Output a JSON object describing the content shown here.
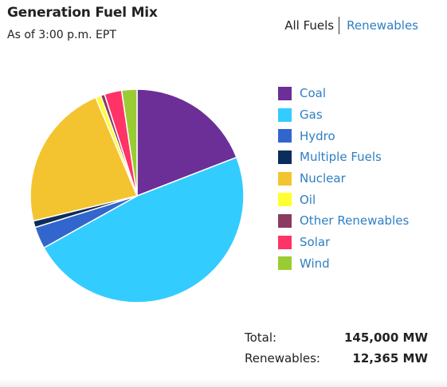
{
  "header": {
    "title": "Generation Fuel Mix",
    "subtitle": "As of 3:00 p.m. EPT"
  },
  "toggle": {
    "all_label": "All Fuels",
    "renewables_label": "Renewables"
  },
  "chart_data": {
    "type": "pie",
    "title": "Generation Fuel Mix",
    "slices": [
      {
        "name": "Coal",
        "value": 19.0,
        "color": "#6b2f97"
      },
      {
        "name": "Gas",
        "value": 47.5,
        "color": "#33ccff"
      },
      {
        "name": "Hydro",
        "value": 3.3,
        "color": "#3366cc"
      },
      {
        "name": "Multiple Fuels",
        "value": 1.0,
        "color": "#0b2d5b"
      },
      {
        "name": "Nuclear",
        "value": 22.3,
        "color": "#f4c430"
      },
      {
        "name": "Oil",
        "value": 0.8,
        "color": "#ffff33"
      },
      {
        "name": "Other Renewables",
        "value": 0.6,
        "color": "#8b3a62"
      },
      {
        "name": "Solar",
        "value": 2.6,
        "color": "#ff3366"
      },
      {
        "name": "Wind",
        "value": 2.3,
        "color": "#99cc33"
      }
    ],
    "legend_placement": "right"
  },
  "totals": {
    "total_label": "Total:",
    "total_value": "145,000 MW",
    "renewables_label": "Renewables:",
    "renewables_value": "12,365 MW"
  }
}
